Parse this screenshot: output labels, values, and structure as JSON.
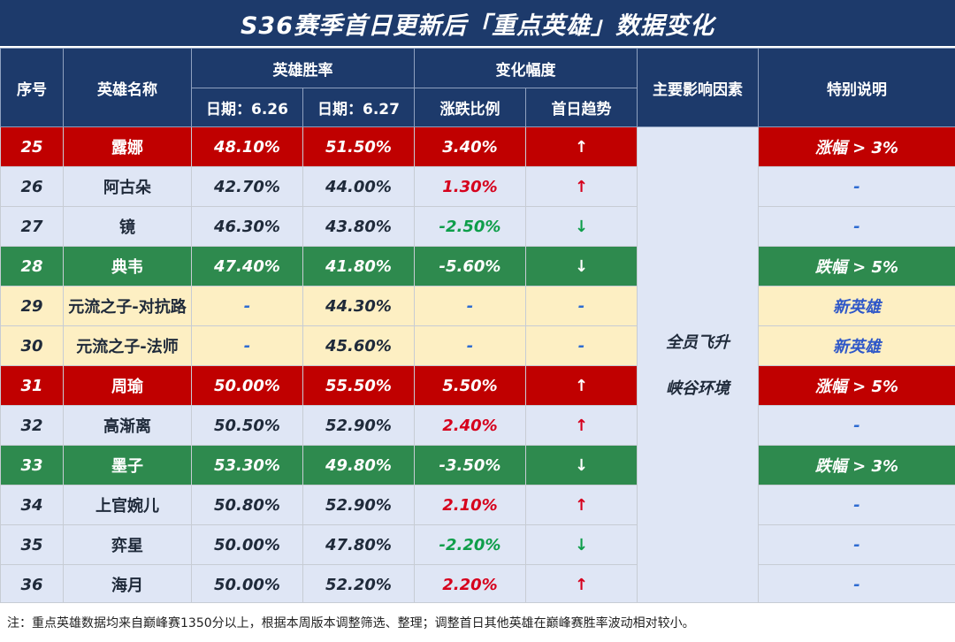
{
  "title": "S36赛季首日更新后「重点英雄」数据变化",
  "headers": {
    "index": "序号",
    "hero_name": "英雄名称",
    "win_rate": "英雄胜率",
    "change": "变化幅度",
    "factor": "主要影响因素",
    "note": "特别说明",
    "date1": "日期：6.26",
    "date2": "日期：6.27",
    "ratio": "涨跌比例",
    "trend": "首日趋势"
  },
  "factor_text": [
    "全员飞升",
    "峡谷环境"
  ],
  "rows": [
    {
      "idx": "25",
      "name": "露娜",
      "d1": "48.10%",
      "d2": "51.50%",
      "ratio": "3.40%",
      "trend": "↑",
      "note": "涨幅 > 3%",
      "style": "red"
    },
    {
      "idx": "26",
      "name": "阿古朵",
      "d1": "42.70%",
      "d2": "44.00%",
      "ratio": "1.30%",
      "trend": "↑",
      "note": "-",
      "style": "blue"
    },
    {
      "idx": "27",
      "name": "镜",
      "d1": "46.30%",
      "d2": "43.80%",
      "ratio": "-2.50%",
      "trend": "↓",
      "note": "-",
      "style": "blue"
    },
    {
      "idx": "28",
      "name": "典韦",
      "d1": "47.40%",
      "d2": "41.80%",
      "ratio": "-5.60%",
      "trend": "↓",
      "note": "跌幅 > 5%",
      "style": "green"
    },
    {
      "idx": "29",
      "name": "元流之子-对抗路",
      "d1": "-",
      "d2": "44.30%",
      "ratio": "-",
      "trend": "-",
      "note": "新英雄",
      "style": "yellow"
    },
    {
      "idx": "30",
      "name": "元流之子-法师",
      "d1": "-",
      "d2": "45.60%",
      "ratio": "-",
      "trend": "-",
      "note": "新英雄",
      "style": "yellow"
    },
    {
      "idx": "31",
      "name": "周瑜",
      "d1": "50.00%",
      "d2": "55.50%",
      "ratio": "5.50%",
      "trend": "↑",
      "note": "涨幅 > 5%",
      "style": "red"
    },
    {
      "idx": "32",
      "name": "高渐离",
      "d1": "50.50%",
      "d2": "52.90%",
      "ratio": "2.40%",
      "trend": "↑",
      "note": "-",
      "style": "blue"
    },
    {
      "idx": "33",
      "name": "墨子",
      "d1": "53.30%",
      "d2": "49.80%",
      "ratio": "-3.50%",
      "trend": "↓",
      "note": "跌幅 > 3%",
      "style": "green"
    },
    {
      "idx": "34",
      "name": "上官婉儿",
      "d1": "50.80%",
      "d2": "52.90%",
      "ratio": "2.10%",
      "trend": "↑",
      "note": "-",
      "style": "blue"
    },
    {
      "idx": "35",
      "name": "弈星",
      "d1": "50.00%",
      "d2": "47.80%",
      "ratio": "-2.20%",
      "trend": "↓",
      "note": "-",
      "style": "blue"
    },
    {
      "idx": "36",
      "name": "海月",
      "d1": "50.00%",
      "d2": "52.20%",
      "ratio": "2.20%",
      "trend": "↑",
      "note": "-",
      "style": "blue"
    }
  ],
  "footnote": "注：重点英雄数据均来自巅峰赛1350分以上，根据本周版本调整筛选、整理；调整首日其他英雄在巅峰赛胜率波动相对较小。"
}
